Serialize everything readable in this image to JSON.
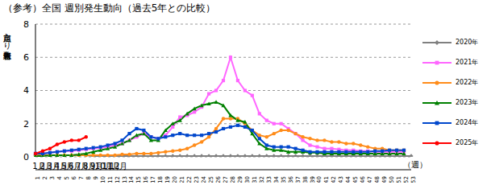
{
  "chart_data": {
    "type": "line",
    "title": "（参考）全国 週別発生動向（過去5年との比較）",
    "y_label": "定点当たり患者報告数",
    "x_label": "（週）",
    "month_labels": [
      "1月",
      "2月",
      "3月",
      "4月",
      "5月",
      "6月",
      "7月",
      "8月",
      "9月",
      "10月",
      "11月",
      "12月"
    ],
    "categories": [
      1,
      2,
      3,
      4,
      5,
      6,
      7,
      8,
      9,
      10,
      11,
      12,
      13,
      14,
      15,
      16,
      17,
      18,
      19,
      20,
      21,
      22,
      23,
      24,
      25,
      26,
      27,
      28,
      29,
      30,
      31,
      32,
      33,
      34,
      35,
      36,
      37,
      38,
      39,
      40,
      41,
      42,
      43,
      44,
      45,
      46,
      47,
      48,
      49,
      50,
      51,
      52,
      53
    ],
    "ylim": [
      0,
      8
    ],
    "yticks": [
      0,
      2,
      4,
      6,
      8
    ],
    "grid": true,
    "legend": "right",
    "series": [
      {
        "name": "2020年",
        "color": "#808080",
        "marker": "diamond",
        "values": [
          0.1,
          0.1,
          0.1,
          0.1,
          0.1,
          0.1,
          0.1,
          0.1,
          0.05,
          0.05,
          0.05,
          0.05,
          0.05,
          0.05,
          0.05,
          0.05,
          0.05,
          0.05,
          0.05,
          0.05,
          0.05,
          0.05,
          0.05,
          0.05,
          0.05,
          0.05,
          0.05,
          0.05,
          0.05,
          0.05,
          0.05,
          0.05,
          0.05,
          0.05,
          0.05,
          0.05,
          0.05,
          0.05,
          0.05,
          0.05,
          0.05,
          0.05,
          0.05,
          0.05,
          0.05,
          0.05,
          0.05,
          0.05,
          0.05,
          0.05,
          0.05,
          0.05,
          0.05
        ]
      },
      {
        "name": "2021年",
        "color": "#ff66ff",
        "marker": "square",
        "values": [
          0.2,
          0.2,
          0.25,
          0.3,
          0.35,
          0.35,
          0.4,
          0.45,
          0.5,
          0.55,
          0.6,
          0.7,
          0.8,
          1.0,
          1.2,
          1.4,
          1.2,
          1.1,
          1.3,
          1.8,
          2.4,
          2.5,
          2.7,
          3.0,
          3.8,
          4.0,
          4.6,
          6.0,
          4.6,
          4.0,
          3.7,
          2.6,
          2.2,
          2.0,
          2.0,
          1.7,
          1.4,
          1.0,
          0.7,
          0.6,
          0.5,
          0.5,
          0.45,
          0.4,
          0.4,
          0.35,
          0.35,
          0.3,
          0.3,
          0.3,
          0.3,
          0.3,
          null
        ]
      },
      {
        "name": "2022年",
        "color": "#ff8c1a",
        "marker": "circle",
        "values": [
          0.1,
          0.1,
          0.1,
          0.1,
          0.1,
          0.1,
          0.1,
          0.1,
          0.1,
          0.1,
          0.1,
          0.1,
          0.15,
          0.15,
          0.2,
          0.2,
          0.2,
          0.25,
          0.3,
          0.35,
          0.4,
          0.5,
          0.7,
          0.9,
          1.2,
          1.7,
          2.3,
          2.3,
          2.3,
          2.0,
          1.6,
          1.3,
          1.2,
          1.4,
          1.6,
          1.6,
          1.4,
          1.2,
          1.1,
          1.0,
          1.0,
          0.9,
          0.9,
          0.8,
          0.8,
          0.7,
          0.6,
          0.5,
          0.5,
          0.4,
          0.4,
          0.4,
          null
        ]
      },
      {
        "name": "2023年",
        "color": "#008000",
        "marker": "triangle",
        "values": [
          0.05,
          0.05,
          0.1,
          0.1,
          0.1,
          0.1,
          0.15,
          0.2,
          0.3,
          0.4,
          0.5,
          0.6,
          0.8,
          1.0,
          1.3,
          1.4,
          1.0,
          1.0,
          1.6,
          2.0,
          2.2,
          2.6,
          2.9,
          3.1,
          3.2,
          3.3,
          3.1,
          2.5,
          2.2,
          2.1,
          1.4,
          0.8,
          0.5,
          0.4,
          0.4,
          0.3,
          0.3,
          0.3,
          0.25,
          0.25,
          0.2,
          0.2,
          0.2,
          0.2,
          0.2,
          0.2,
          0.2,
          0.2,
          0.2,
          0.2,
          0.2,
          0.2,
          null
        ]
      },
      {
        "name": "2024年",
        "color": "#0047cc",
        "marker": "square",
        "values": [
          0.2,
          0.2,
          0.25,
          0.3,
          0.35,
          0.4,
          0.45,
          0.5,
          0.55,
          0.6,
          0.7,
          0.8,
          1.0,
          1.4,
          1.7,
          1.6,
          1.2,
          1.1,
          1.2,
          1.3,
          1.4,
          1.3,
          1.3,
          1.3,
          1.4,
          1.5,
          1.7,
          1.8,
          1.9,
          1.8,
          1.6,
          1.1,
          0.7,
          0.6,
          0.6,
          0.6,
          0.5,
          0.4,
          0.3,
          0.3,
          0.3,
          0.3,
          0.3,
          0.3,
          0.3,
          0.3,
          0.3,
          0.35,
          0.35,
          0.4,
          0.4,
          0.4,
          null
        ]
      },
      {
        "name": "2025年",
        "color": "#ff0000",
        "marker": "circle",
        "values": [
          0.2,
          0.35,
          0.5,
          0.75,
          0.9,
          1.0,
          1.0,
          1.2,
          null,
          null,
          null,
          null,
          null,
          null,
          null,
          null,
          null,
          null,
          null,
          null,
          null,
          null,
          null,
          null,
          null,
          null,
          null,
          null,
          null,
          null,
          null,
          null,
          null,
          null,
          null,
          null,
          null,
          null,
          null,
          null,
          null,
          null,
          null,
          null,
          null,
          null,
          null,
          null,
          null,
          null,
          null,
          null,
          null
        ]
      }
    ]
  }
}
